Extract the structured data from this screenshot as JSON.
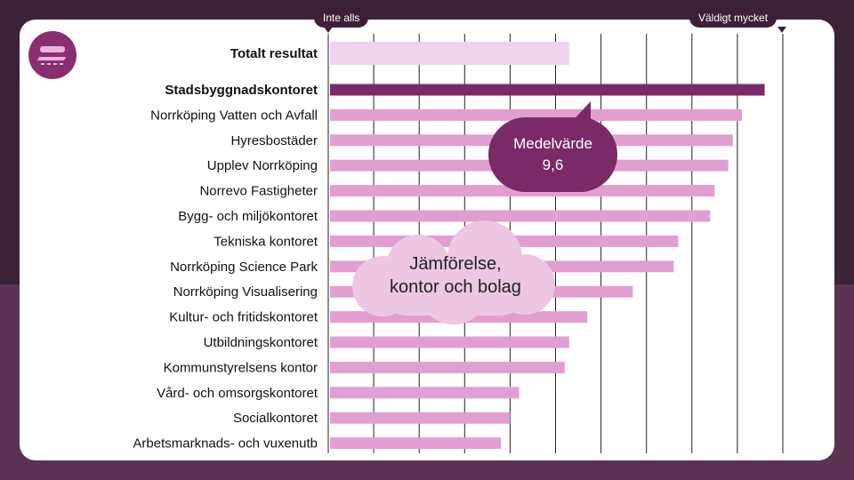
{
  "header": {
    "left_pill": "Inte alls",
    "right_pill": "Väldigt mycket"
  },
  "callout": {
    "line1": "Medelvärde",
    "line2": "9,6"
  },
  "cloud": {
    "line1": "Jämförelse,",
    "line2": "kontor och bolag"
  },
  "colors": {
    "total_bar": "#ecd4ec",
    "highlight_bar": "#7a2a67",
    "default_bar": "#e19fd1",
    "callout": "#7a2a67",
    "cloud": "#ecc6e2",
    "background": "#3a2436"
  },
  "chart_data": {
    "type": "bar",
    "orientation": "horizontal",
    "xlim": [
      0,
      10
    ],
    "grid": true,
    "categories": [
      "Totalt resultat",
      "Stadsbyggnadskontoret",
      "Norrköping Vatten och Avfall",
      "Hyresbostäder",
      "Upplev Norrköping",
      "Norrevo Fastigheter",
      "Bygg- och miljökontoret",
      "Tekniska kontoret",
      "Norrköping Science Park",
      "Norrköping Visualisering",
      "Kultur- och fritidskontoret",
      "Utbildningskontoret",
      "Kommunstyrelsens kontor",
      "Vård- och omsorgskontoret",
      "Socialkontoret",
      "Arbetsmarknads- och vuxenutb"
    ],
    "bold": [
      true,
      true,
      false,
      false,
      false,
      false,
      false,
      false,
      false,
      false,
      false,
      false,
      false,
      false,
      false,
      false
    ],
    "values": [
      5.3,
      9.6,
      9.1,
      8.9,
      8.8,
      8.5,
      8.4,
      7.7,
      7.6,
      6.7,
      5.7,
      5.3,
      5.2,
      4.2,
      4.0,
      3.8
    ]
  }
}
